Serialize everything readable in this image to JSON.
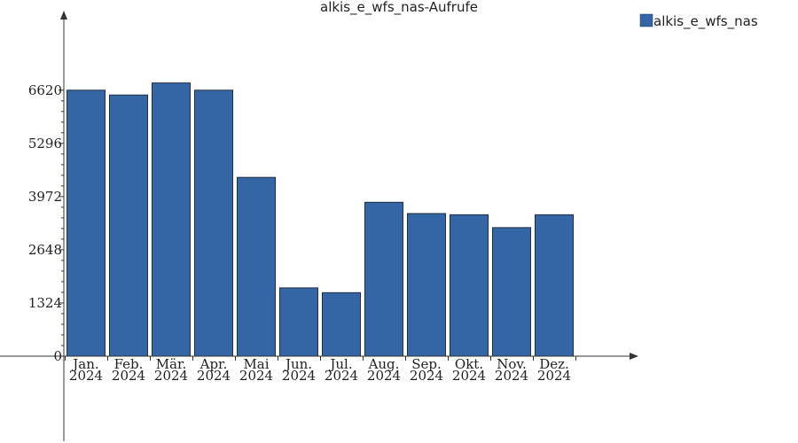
{
  "chart_data": {
    "type": "bar",
    "title": "alkis_e_wfs_nas-Aufrufe",
    "xlabel": "",
    "ylabel": "",
    "categories": [
      [
        "Jan.",
        "2024"
      ],
      [
        "Feb.",
        "2024"
      ],
      [
        "Mär.",
        "2024"
      ],
      [
        "Apr.",
        "2024"
      ],
      [
        "Mai",
        "2024"
      ],
      [
        "Jun.",
        "2024"
      ],
      [
        "Jul.",
        "2024"
      ],
      [
        "Aug.",
        "2024"
      ],
      [
        "Sep.",
        "2024"
      ],
      [
        "Okt.",
        "2024"
      ],
      [
        "Nov.",
        "2024"
      ],
      [
        "Dez.",
        "2024"
      ]
    ],
    "series": [
      {
        "name": "alkis_e_wfs_nas",
        "color": "#3465a4",
        "values": [
          6620,
          6500,
          6800,
          6620,
          4450,
          1700,
          1580,
          3830,
          3550,
          3520,
          3200,
          3520
        ]
      }
    ],
    "yticks": [
      0,
      1324,
      2648,
      3972,
      5296,
      6620
    ],
    "ylim": [
      0,
      8600
    ],
    "legend_position": "top-right",
    "grid": false
  }
}
